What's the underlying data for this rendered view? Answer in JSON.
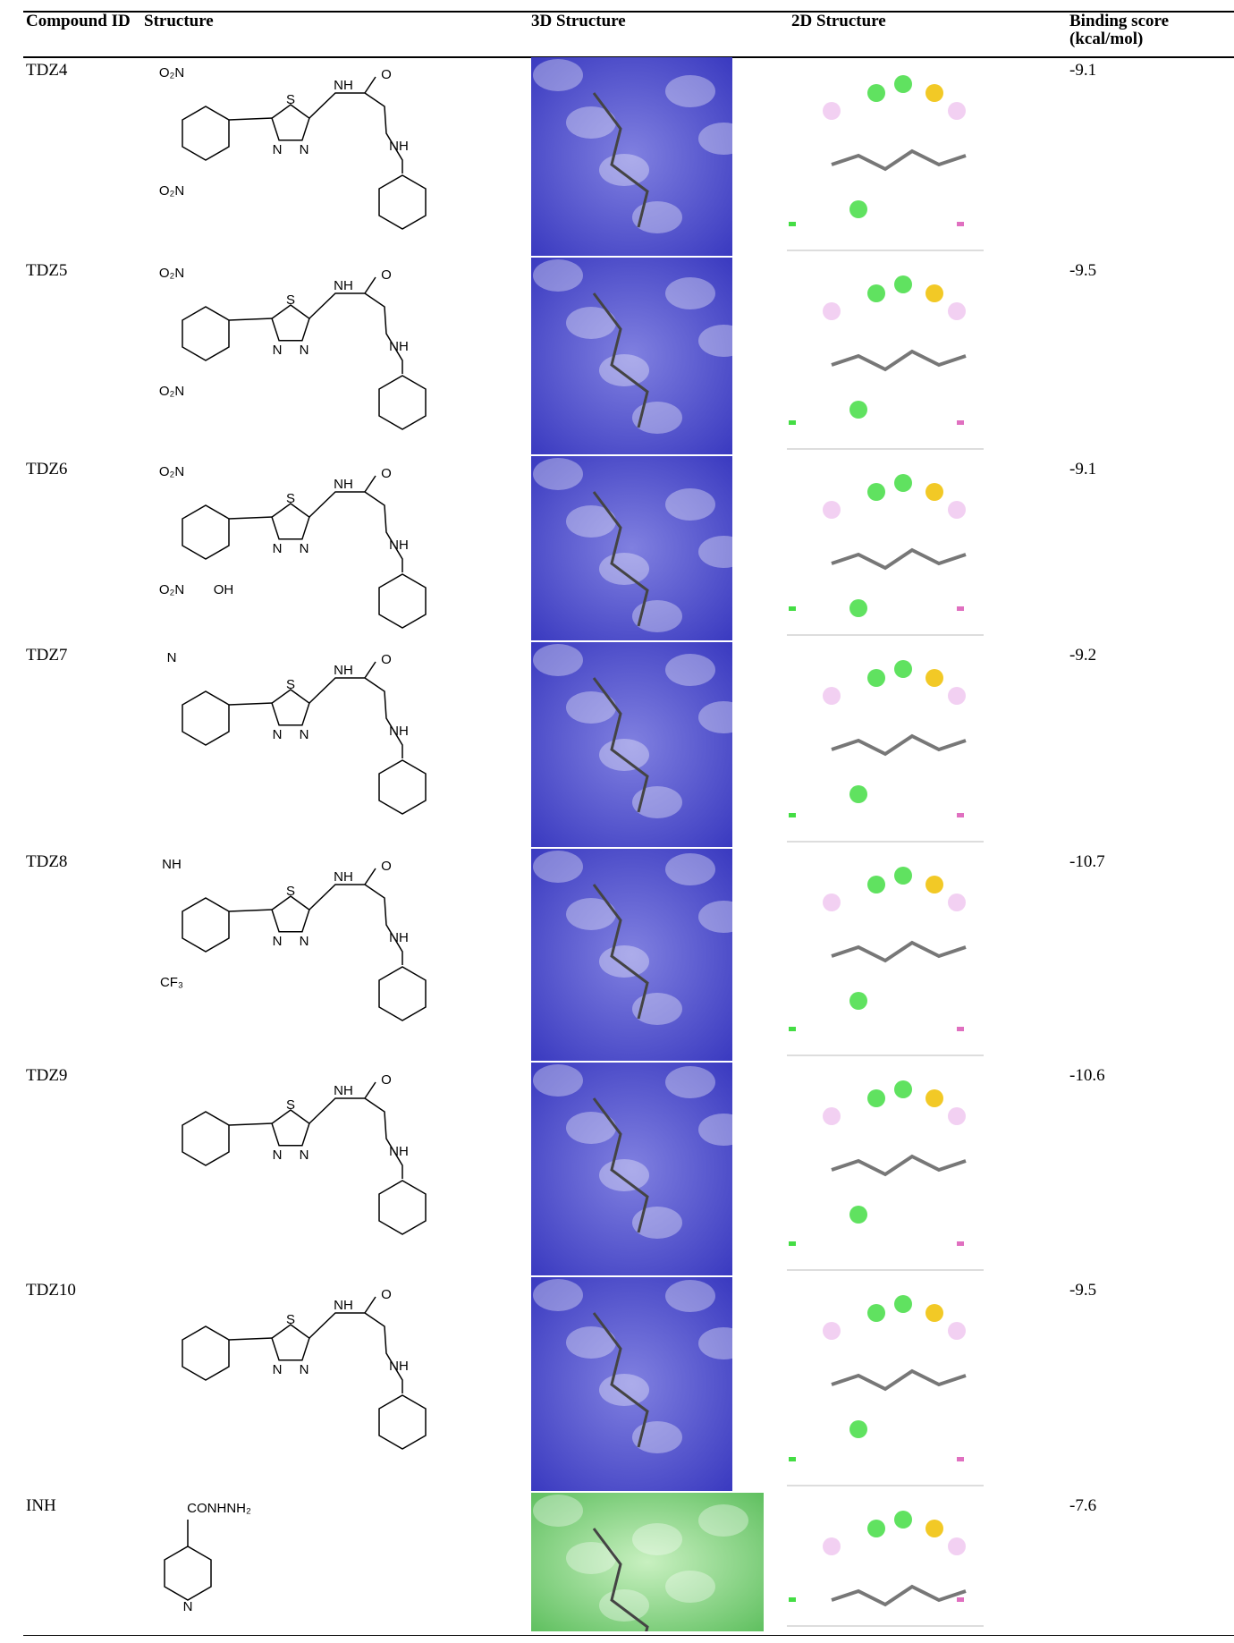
{
  "table": {
    "header": [
      "Compound ID",
      "Structure",
      "3D Structure",
      "2D Structure",
      "Binding score (kcal/mol)"
    ],
    "rows": [
      {
        "id": "TDZ4",
        "substituents": [
          "O₂N",
          "O₂N"
        ],
        "scaffold": [
          "S",
          "N",
          "N",
          "NH",
          "O",
          "NH"
        ],
        "score": "-9.1"
      },
      {
        "id": "TDZ5",
        "substituents": [
          "O₂N",
          "O₂N"
        ],
        "scaffold": [
          "S",
          "N",
          "N",
          "NH",
          "O",
          "NH"
        ],
        "score": "-9.5"
      },
      {
        "id": "TDZ6",
        "substituents": [
          "O₂N",
          "O₂N",
          "OH"
        ],
        "scaffold": [
          "S",
          "N",
          "N",
          "NH",
          "O",
          "NH"
        ],
        "score": "-9.1"
      },
      {
        "id": "TDZ7",
        "substituents": [
          "N"
        ],
        "scaffold": [
          "S",
          "N",
          "N",
          "NH",
          "O",
          "NH"
        ],
        "score": "-9.2"
      },
      {
        "id": "TDZ8",
        "substituents": [
          "NH",
          "CF₃"
        ],
        "scaffold": [
          "S",
          "N",
          "N",
          "NH",
          "O",
          "NH"
        ],
        "score": "-10.7"
      },
      {
        "id": "TDZ9",
        "substituents": [],
        "scaffold": [
          "S",
          "N",
          "N",
          "NH",
          "O",
          "NH"
        ],
        "score": "-10.6"
      },
      {
        "id": "TDZ10",
        "substituents": [],
        "scaffold": [
          "S",
          "N",
          "N",
          "NH",
          "O",
          "NH"
        ],
        "score": "-9.5"
      },
      {
        "id": "INH",
        "substituents": [
          "CONHNH₂",
          "N"
        ],
        "score": "-7.6"
      }
    ]
  }
}
